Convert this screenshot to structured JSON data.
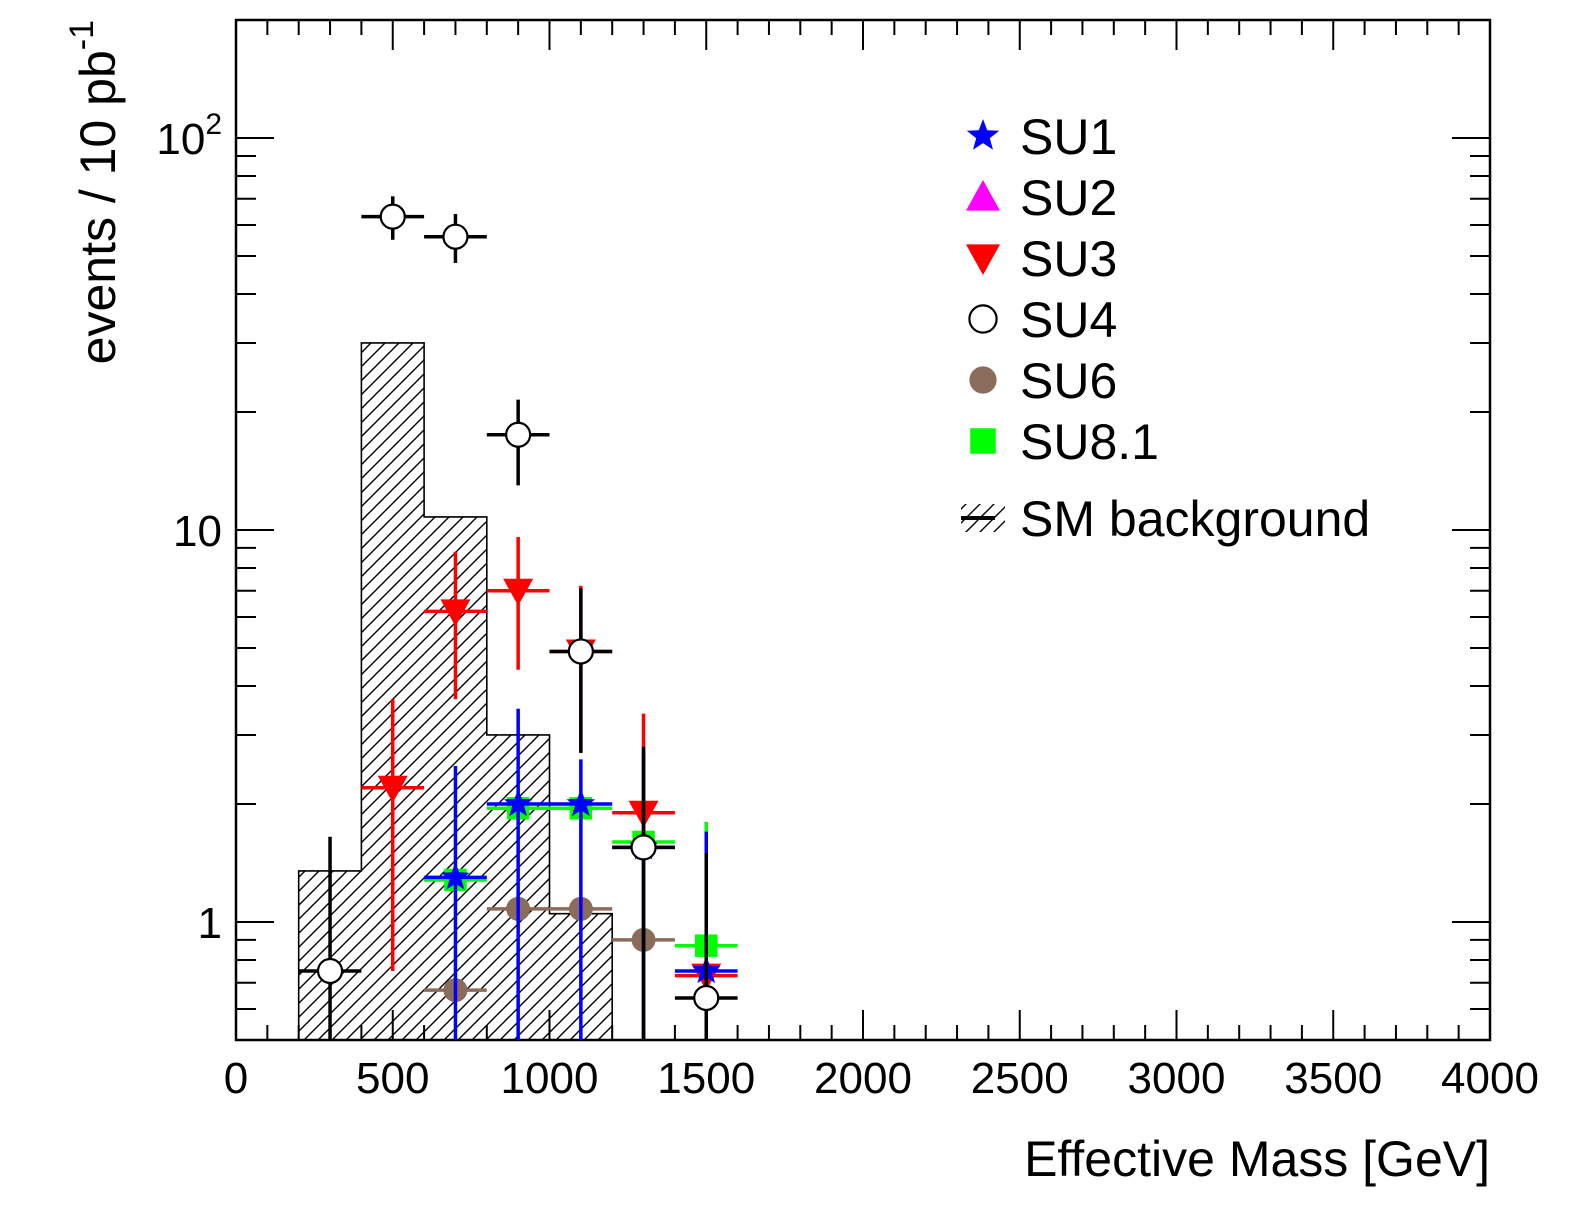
{
  "chart_data": {
    "type": "scatter",
    "xlabel": "Effective Mass [GeV]",
    "ylabel_main": "events / 10 pb",
    "ylabel_sup": "-1",
    "xlim": [
      0,
      4000
    ],
    "ylim": [
      0.5,
      200
    ],
    "y_scale": "log",
    "x_ticks": [
      0,
      500,
      1000,
      1500,
      2000,
      2500,
      3000,
      3500,
      4000
    ],
    "x_tick_labels": [
      "0",
      "500",
      "1000",
      "1500",
      "2000",
      "2500",
      "3000",
      "3500",
      "4000"
    ],
    "y_tick_labels": [
      {
        "value": 1,
        "base": "1",
        "sup": ""
      },
      {
        "value": 10,
        "base": "10",
        "sup": ""
      },
      {
        "value": 100,
        "base": "10",
        "sup": "2"
      }
    ],
    "bin_width": 200,
    "legend_position": "top-right",
    "background": {
      "name": "SM background",
      "bins": [
        {
          "x0": 200,
          "x1": 400,
          "y": 1.35
        },
        {
          "x0": 400,
          "x1": 600,
          "y": 30
        },
        {
          "x0": 600,
          "x1": 800,
          "y": 10.8
        },
        {
          "x0": 800,
          "x1": 1000,
          "y": 3.0
        },
        {
          "x0": 1000,
          "x1": 1200,
          "y": 1.05
        }
      ]
    },
    "series": [
      {
        "name": "SU1",
        "marker": "star",
        "color": "#0000ff",
        "points": [
          {
            "x": 700,
            "y": 1.3,
            "lo": 0.5,
            "hi": 2.5
          },
          {
            "x": 900,
            "y": 2.0,
            "lo": 0.5,
            "hi": 3.5
          },
          {
            "x": 1100,
            "y": 2.0,
            "lo": 0.5,
            "hi": 2.6
          },
          {
            "x": 1300,
            "y": 1.55,
            "lo": 0.5,
            "hi": 2.7
          },
          {
            "x": 1500,
            "y": 0.75,
            "lo": 0.5,
            "hi": 1.7
          }
        ]
      },
      {
        "name": "SU2",
        "marker": "triangle-up",
        "color": "#ff00ff",
        "points": []
      },
      {
        "name": "SU3",
        "marker": "triangle-down",
        "color": "#ff0000",
        "points": [
          {
            "x": 500,
            "y": 2.2,
            "lo": 0.75,
            "hi": 3.7
          },
          {
            "x": 700,
            "y": 6.2,
            "lo": 3.7,
            "hi": 8.8
          },
          {
            "x": 900,
            "y": 7.0,
            "lo": 4.4,
            "hi": 9.6
          },
          {
            "x": 1100,
            "y": 4.9,
            "lo": 2.7,
            "hi": 7.2
          },
          {
            "x": 1300,
            "y": 1.9,
            "lo": 0.5,
            "hi": 3.4
          },
          {
            "x": 1500,
            "y": 0.73,
            "lo": 0.5,
            "hi": 1.6
          }
        ]
      },
      {
        "name": "SU4",
        "marker": "circle-open",
        "color": "#000000",
        "points": [
          {
            "x": 300,
            "y": 0.75,
            "lo": 0.5,
            "hi": 1.65
          },
          {
            "x": 500,
            "y": 63,
            "lo": 55,
            "hi": 71
          },
          {
            "x": 700,
            "y": 56,
            "lo": 48,
            "hi": 64
          },
          {
            "x": 900,
            "y": 17.5,
            "lo": 13,
            "hi": 21.5
          },
          {
            "x": 1100,
            "y": 4.9,
            "lo": 2.7,
            "hi": 7.1
          },
          {
            "x": 1300,
            "y": 1.55,
            "lo": 0.5,
            "hi": 2.8
          },
          {
            "x": 1500,
            "y": 0.64,
            "lo": 0.5,
            "hi": 1.5
          }
        ]
      },
      {
        "name": "SU6",
        "marker": "circle-filled",
        "color": "#8b6b5a",
        "points": [
          {
            "x": 700,
            "y": 0.67
          },
          {
            "x": 900,
            "y": 1.08
          },
          {
            "x": 1100,
            "y": 1.08
          },
          {
            "x": 1300,
            "y": 0.9
          }
        ]
      },
      {
        "name": "SU8.1",
        "marker": "square",
        "color": "#00ff00",
        "points": [
          {
            "x": 700,
            "y": 1.28
          },
          {
            "x": 900,
            "y": 1.95
          },
          {
            "x": 1100,
            "y": 1.95
          },
          {
            "x": 1300,
            "y": 1.6
          },
          {
            "x": 1500,
            "y": 0.87,
            "lo": 0.5,
            "hi": 1.8
          }
        ]
      }
    ]
  }
}
